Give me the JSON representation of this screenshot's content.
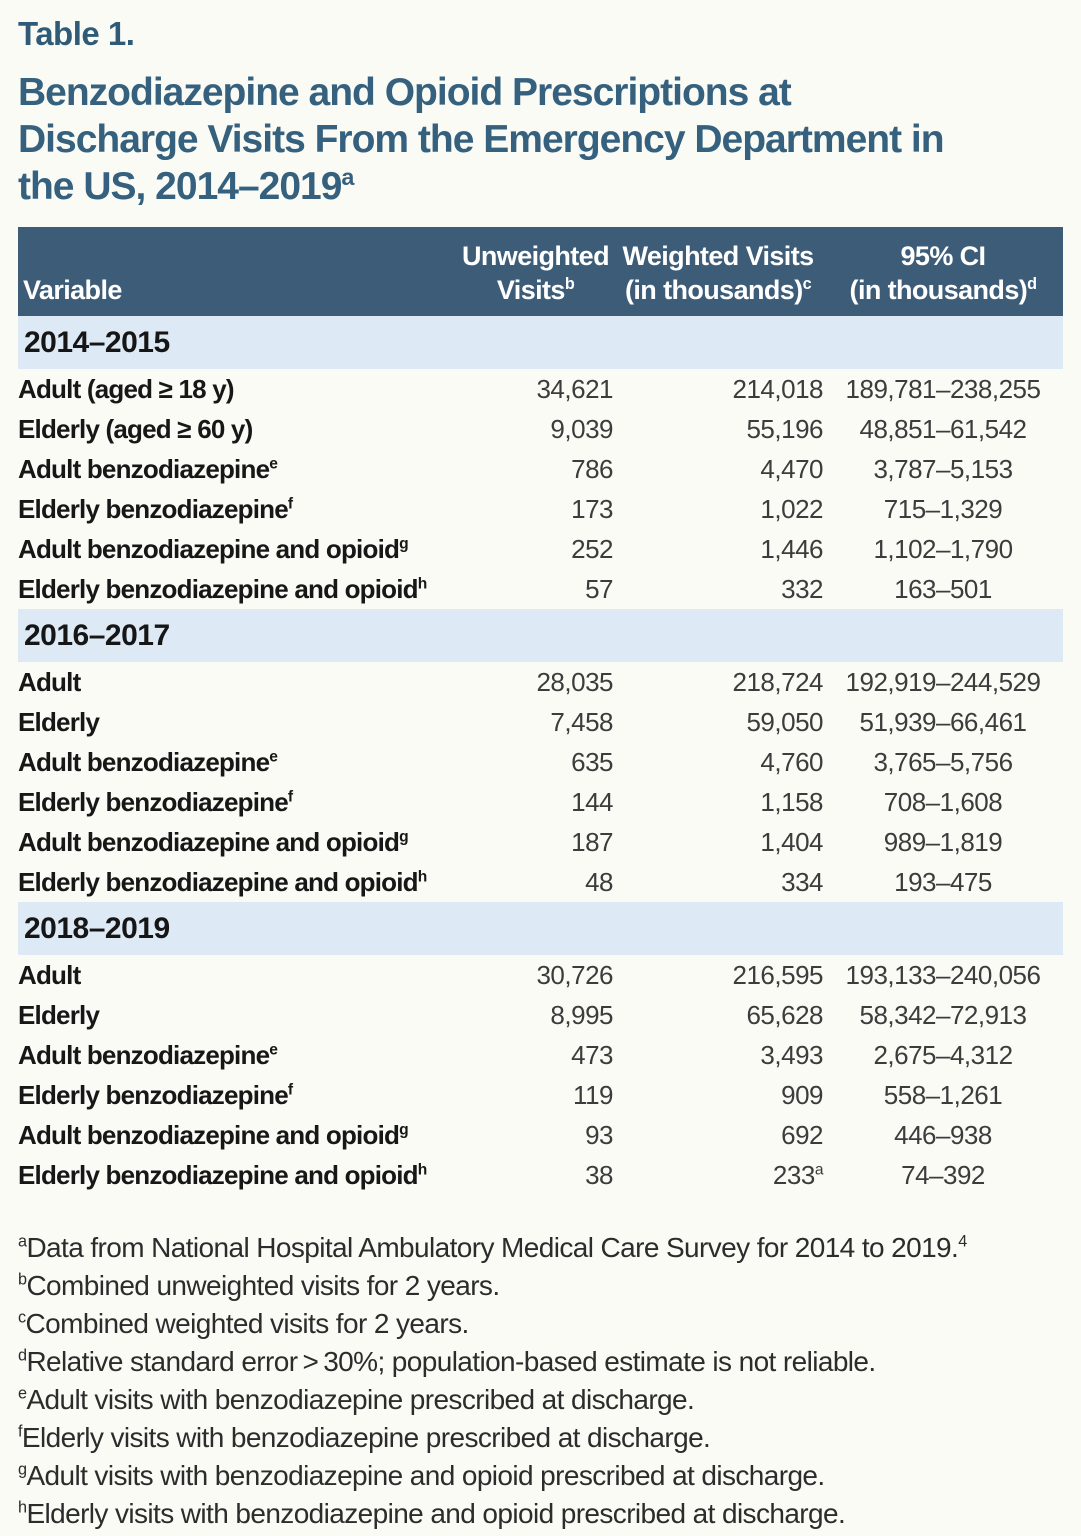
{
  "page": {
    "table_label": "Table 1.",
    "title_lines": [
      "Benzodiazepine and Opioid Prescriptions at",
      "Discharge Visits From the Emergency Department in",
      "the US, 2014–2019"
    ],
    "title_sup": "a"
  },
  "colors": {
    "title_blue": "#35617f",
    "header_bg": "#3c5c78",
    "section_band_bg": "#ddeaf6",
    "rule_color": "#44607c",
    "page_bg": "#fbfbf5"
  },
  "table": {
    "columns": [
      {
        "line1": "Variable"
      },
      {
        "line1": "Unweighted",
        "line2": "Visits",
        "sup": "b"
      },
      {
        "line1": "Weighted Visits",
        "line2": "(in thousands)",
        "sup": "c"
      },
      {
        "line1": "95% CI",
        "line2": "(in thousands)",
        "sup": "d"
      }
    ],
    "sections": [
      {
        "period": "2014–2015",
        "rows": [
          {
            "variable": "Adult (aged ≥ 18 y)",
            "unweighted": "34,621",
            "weighted": "214,018",
            "ci": "189,781–238,255"
          },
          {
            "variable": "Elderly (aged ≥ 60 y)",
            "unweighted": "9,039",
            "weighted": "55,196",
            "ci": "48,851–61,542"
          },
          {
            "variable": "Adult benzodiazepine",
            "variable_sup": "e",
            "unweighted": "786",
            "weighted": "4,470",
            "ci": "3,787–5,153"
          },
          {
            "variable": "Elderly benzodiazepine",
            "variable_sup": "f",
            "unweighted": "173",
            "weighted": "1,022",
            "ci": "715–1,329"
          },
          {
            "variable": "Adult benzodiazepine and opioid",
            "variable_sup": "g",
            "unweighted": "252",
            "weighted": "1,446",
            "ci": "1,102–1,790"
          },
          {
            "variable": "Elderly benzodiazepine and opioid",
            "variable_sup": "h",
            "unweighted": "57",
            "weighted": "332",
            "ci": "163–501"
          }
        ]
      },
      {
        "period": "2016–2017",
        "rows": [
          {
            "variable": "Adult",
            "unweighted": "28,035",
            "weighted": "218,724",
            "ci": "192,919–244,529"
          },
          {
            "variable": "Elderly",
            "unweighted": "7,458",
            "weighted": "59,050",
            "ci": "51,939–66,461"
          },
          {
            "variable": "Adult benzodiazepine",
            "variable_sup": "e",
            "unweighted": "635",
            "weighted": "4,760",
            "ci": "3,765–5,756"
          },
          {
            "variable": "Elderly benzodiazepine",
            "variable_sup": "f",
            "unweighted": "144",
            "weighted": "1,158",
            "ci": "708–1,608"
          },
          {
            "variable": "Adult benzodiazepine and opioid",
            "variable_sup": "g",
            "unweighted": "187",
            "weighted": "1,404",
            "ci": "989–1,819"
          },
          {
            "variable": "Elderly benzodiazepine and opioid",
            "variable_sup": "h",
            "unweighted": "48",
            "weighted": "334",
            "ci": "193–475"
          }
        ]
      },
      {
        "period": "2018–2019",
        "rows": [
          {
            "variable": "Adult",
            "unweighted": "30,726",
            "weighted": "216,595",
            "ci": "193,133–240,056"
          },
          {
            "variable": "Elderly",
            "unweighted": "8,995",
            "weighted": "65,628",
            "ci": "58,342–72,913"
          },
          {
            "variable": "Adult benzodiazepine",
            "variable_sup": "e",
            "unweighted": "473",
            "weighted": "3,493",
            "ci": "2,675–4,312"
          },
          {
            "variable": "Elderly benzodiazepine",
            "variable_sup": "f",
            "unweighted": "119",
            "weighted": "909",
            "ci": "558–1,261"
          },
          {
            "variable": "Adult benzodiazepine and opioid",
            "variable_sup": "g",
            "unweighted": "93",
            "weighted": "692",
            "ci": "446–938"
          },
          {
            "variable": "Elderly benzodiazepine and opioid",
            "variable_sup": "h",
            "unweighted": "38",
            "weighted": "233",
            "weighted_sup": "a",
            "ci": "74–392"
          }
        ]
      }
    ]
  },
  "footnotes": [
    {
      "sup": "a",
      "text": "Data from National Hospital Ambulatory Medical Care Survey for 2014 to 2019.",
      "ref": "4"
    },
    {
      "sup": "b",
      "text": "Combined unweighted visits for 2 years."
    },
    {
      "sup": "c",
      "text": "Combined weighted visits for 2 years."
    },
    {
      "sup": "d",
      "text": "Relative standard error > 30%; population-based estimate is not reliable."
    },
    {
      "sup": "e",
      "text": "Adult visits with benzodiazepine prescribed at discharge."
    },
    {
      "sup": "f",
      "text": "Elderly visits with benzodiazepine prescribed at discharge."
    },
    {
      "sup": "g",
      "text": "Adult visits with benzodiazepine and opioid prescribed at discharge."
    },
    {
      "sup": "h",
      "text": "Elderly visits with benzodiazepine and opioid prescribed at discharge."
    }
  ]
}
